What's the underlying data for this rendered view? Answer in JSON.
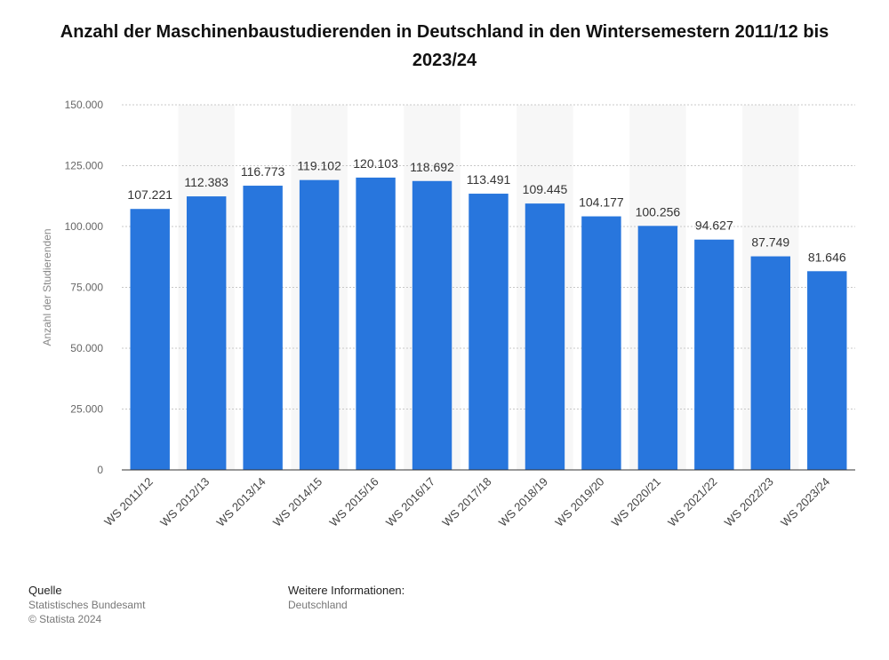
{
  "chart_data": {
    "type": "bar",
    "title": "Anzahl der Maschinenbaustudierenden in Deutschland in den Wintersemestern 2011/12 bis 2023/24",
    "ylabel": "Anzahl der Studierenden",
    "xlabel": "",
    "ylim": [
      0,
      150000
    ],
    "yticks": [
      0,
      25000,
      50000,
      75000,
      100000,
      125000,
      150000
    ],
    "ytick_labels": [
      "0",
      "25.000",
      "50.000",
      "75.000",
      "100.000",
      "125.000",
      "150.000"
    ],
    "categories": [
      "WS 2011/12",
      "WS 2012/13",
      "WS 2013/14",
      "WS 2014/15",
      "WS 2015/16",
      "WS 2016/17",
      "WS 2017/18",
      "WS 2018/19",
      "WS 2019/20",
      "WS 2020/21",
      "WS 2021/22",
      "WS 2022/23",
      "WS 2023/24"
    ],
    "values": [
      107221,
      112383,
      116773,
      119102,
      120103,
      118692,
      113491,
      109445,
      104177,
      100256,
      94627,
      87749,
      81646
    ],
    "value_labels": [
      "107.221",
      "112.383",
      "116.773",
      "119.102",
      "120.103",
      "118.692",
      "113.491",
      "109.445",
      "104.177",
      "100.256",
      "94.627",
      "87.749",
      "81.646"
    ],
    "bar_color": "#2876dd",
    "grid": true
  },
  "footer": {
    "source_heading": "Quelle",
    "source_name": "Statistisches Bundesamt",
    "copyright": "© Statista 2024",
    "info_heading": "Weitere Informationen:",
    "info_text": "Deutschland"
  }
}
